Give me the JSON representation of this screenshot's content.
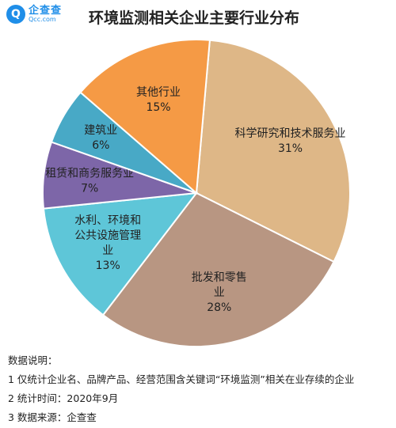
{
  "logo": {
    "mark": "Q",
    "name": "企查查",
    "domain": "Qcc.com"
  },
  "title": "环境监测相关企业主要行业分布",
  "chart_data": {
    "type": "pie",
    "title": "环境监测相关企业主要行业分布",
    "start_angle_deg": 5,
    "direction": "clockwise",
    "slices": [
      {
        "label_lines": [
          "科学研究和技术服务业"
        ],
        "value": 31,
        "value_label": "31%",
        "color": "#deb787"
      },
      {
        "label_lines": [
          "批发和零售",
          "业"
        ],
        "value": 28,
        "value_label": "28%",
        "color": "#b89682"
      },
      {
        "label_lines": [
          "水利、环境和",
          "公共设施管理",
          "业"
        ],
        "value": 13,
        "value_label": "13%",
        "color": "#5ec6d8"
      },
      {
        "label_lines": [
          "租赁和商务服务业"
        ],
        "value": 7,
        "value_label": "7%",
        "color": "#7d66a8"
      },
      {
        "label_lines": [
          "建筑业"
        ],
        "value": 6,
        "value_label": "6%",
        "color": "#48a9c6"
      },
      {
        "label_lines": [
          "其他行业"
        ],
        "value": 15,
        "value_label": "15%",
        "color": "#f59a45"
      }
    ]
  },
  "notes": {
    "heading": "数据说明：",
    "lines": [
      "1 仅统计企业名、品牌产品、经营范围含关键词“环境监测”相关在业存续的企业",
      "2 统计时间：2020年9月",
      "3 数据来源：企查查"
    ]
  }
}
